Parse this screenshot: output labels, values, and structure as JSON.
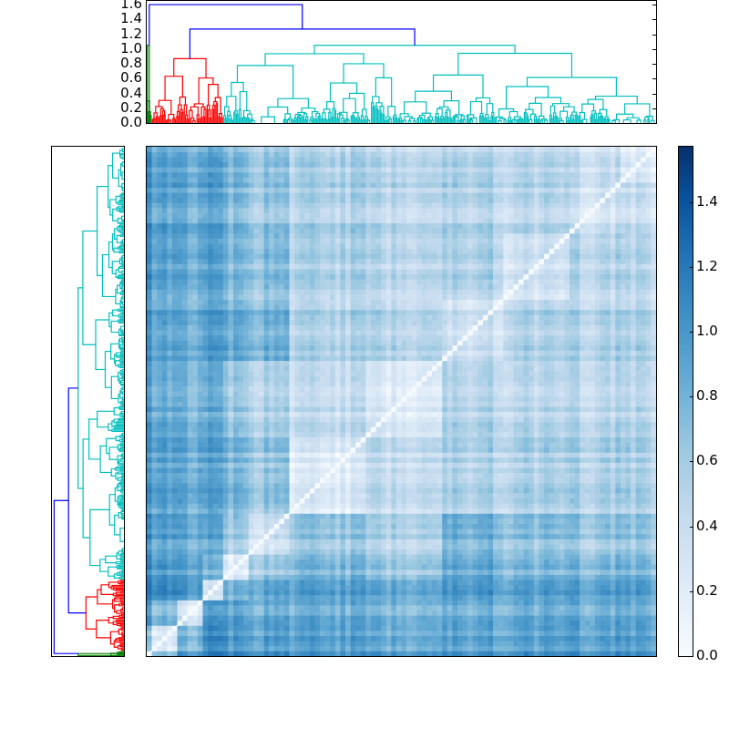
{
  "chart_data": {
    "type": "heatmap",
    "title": "",
    "description": "Clustered distance matrix heatmap with top and left hierarchical-clustering dendrograms and a colorbar",
    "colormap": "Blues",
    "top_dendrogram": {
      "ylabel": "",
      "yticks": [
        "0.0",
        "0.2",
        "0.4",
        "0.6",
        "0.8",
        "1.0",
        "1.2",
        "1.4",
        "1.6"
      ],
      "ylim": [
        0,
        1.65
      ],
      "root_height": 1.6,
      "second_merge_height": 1.27,
      "clusters": [
        {
          "name": "green",
          "color": "#008000",
          "merge_height": 1.05,
          "size_fraction": 0.01
        },
        {
          "name": "red",
          "color": "#ff0000",
          "merge_height": 0.87,
          "size_fraction": 0.14
        },
        {
          "name": "cyan",
          "color": "#00bfbf",
          "merge_height": 1.05,
          "size_fraction": 0.85
        }
      ],
      "link_color_above_threshold": "#0000ff"
    },
    "left_dendrogram": {
      "orientation": "left",
      "clusters": [
        {
          "name": "cyan",
          "color": "#00bfbf",
          "position": "top"
        },
        {
          "name": "red",
          "color": "#ff0000",
          "position": "lower"
        },
        {
          "name": "green",
          "color": "#008000",
          "position": "bottom"
        }
      ]
    },
    "colorbar": {
      "ticks": [
        "0.0",
        "0.2",
        "0.4",
        "0.6",
        "0.8",
        "1.0",
        "1.2",
        "1.4"
      ],
      "range": [
        0.0,
        1.57
      ]
    },
    "matrix": {
      "n_leaves_approx": 400,
      "diagonal_value": 0.0,
      "blocks_note": "Light blocks along diagonal indicate tight clusters; darker bands (approx 1.0-1.3) separate red/green clusters from cyan"
    }
  }
}
